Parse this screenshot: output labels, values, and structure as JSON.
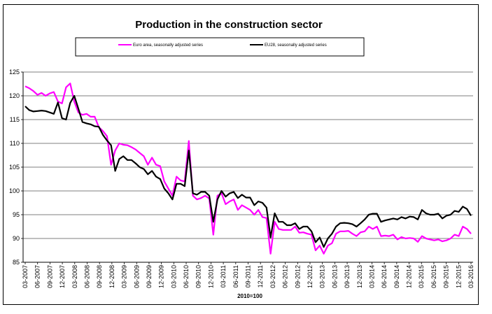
{
  "chart_data": {
    "type": "line",
    "title": "Production in the construction sector",
    "xlabel": "2010=100",
    "ylabel": "",
    "ylim": [
      85,
      125
    ],
    "yticks": [
      85,
      90,
      95,
      100,
      105,
      110,
      115,
      120,
      125
    ],
    "grid": true,
    "legend_position": "top",
    "x_tick_labels": [
      "03-2007",
      "06-2007",
      "09-2007",
      "12-2007",
      "03-2008",
      "06-2008",
      "09-2008",
      "12-2008",
      "03-2009",
      "06-2009",
      "09-2009",
      "12-2009",
      "03-2010",
      "06-2010",
      "09-2010",
      "12-2010",
      "03-2011",
      "06-2011",
      "09-2011",
      "12-2011",
      "03-2012",
      "06-2012",
      "09-2012",
      "12-2012",
      "03-2013",
      "06-2013",
      "09-2013",
      "12-2013",
      "03-2014",
      "06-2014",
      "09-2014",
      "12-2014",
      "03-2015",
      "06-2015",
      "09-2015",
      "12-2015",
      "03-2016"
    ],
    "series": [
      {
        "name": "Euro area, seasonally adjusted series",
        "color": "#ff00ff",
        "values": [
          122,
          121.6,
          121,
          120.2,
          120.6,
          120.0,
          120.5,
          120.8,
          118.8,
          118.4,
          121.8,
          122.6,
          118.8,
          116.5,
          116.0,
          116.2,
          115.6,
          115.6,
          113.4,
          112.6,
          111.5,
          105.5,
          108.5,
          110.0,
          109.7,
          109.6,
          109.2,
          108.7,
          108.0,
          107.3,
          105.5,
          107.0,
          105.5,
          105.2,
          102.0,
          100.5,
          99.0,
          103.0,
          102.2,
          102.0,
          110.5,
          99.0,
          98.2,
          98.5,
          99.0,
          98.4,
          90.8,
          99.0,
          99.5,
          97.2,
          97.8,
          98.2,
          96.0,
          97.0,
          96.5,
          96.0,
          95.0,
          96.0,
          94.5,
          94.3,
          86.8,
          93.5,
          92.0,
          91.8,
          91.8,
          91.8,
          92.5,
          91.2,
          91.3,
          91.0,
          90.8,
          87.5,
          88.5,
          86.8,
          88.5,
          89.0,
          91.0,
          91.5,
          91.5,
          91.6,
          91.0,
          90.5,
          91.3,
          91.5,
          92.5,
          92.0,
          92.5,
          90.5,
          90.6,
          90.5,
          90.8,
          89.8,
          90.3,
          90.0,
          90.1,
          90.0,
          89.3,
          90.5,
          90.0,
          89.8,
          89.6,
          89.8,
          89.4,
          89.6,
          90.0,
          90.8,
          90.5,
          92.5,
          92.0,
          91.0
        ]
      },
      {
        "name": "EU28, seasonally adjusted series",
        "color": "#000000",
        "values": [
          117.8,
          117.0,
          116.7,
          116.8,
          116.9,
          116.8,
          116.5,
          116.2,
          118.6,
          115.3,
          115.0,
          118.5,
          120.0,
          117.3,
          114.5,
          114.2,
          114.0,
          113.6,
          113.5,
          111.8,
          110.6,
          109.6,
          104.2,
          106.7,
          107.3,
          106.5,
          106.5,
          105.8,
          105.0,
          104.6,
          103.5,
          104.2,
          103.0,
          102.5,
          100.5,
          99.5,
          98.2,
          101.5,
          101.5,
          101.0,
          108.5,
          99.5,
          99.2,
          99.8,
          99.8,
          99.0,
          93.5,
          98.2,
          100.0,
          98.8,
          99.5,
          99.8,
          98.5,
          99.2,
          98.6,
          98.6,
          97.0,
          97.8,
          97.5,
          96.5,
          90.2,
          95.3,
          93.5,
          93.5,
          92.8,
          92.8,
          93.2,
          92.0,
          92.5,
          92.5,
          91.5,
          89.2,
          90.2,
          88.2,
          90.0,
          91.0,
          92.5,
          93.2,
          93.3,
          93.2,
          93.0,
          92.5,
          93.2,
          94.0,
          95.0,
          95.2,
          95.2,
          93.5,
          93.8,
          94.0,
          94.2,
          94.0,
          94.5,
          94.2,
          94.6,
          94.5,
          94.0,
          96.0,
          95.3,
          95.0,
          95.0,
          95.2,
          94.2,
          94.8,
          95.0,
          95.8,
          95.6,
          96.7,
          96.2,
          94.8
        ]
      }
    ]
  }
}
